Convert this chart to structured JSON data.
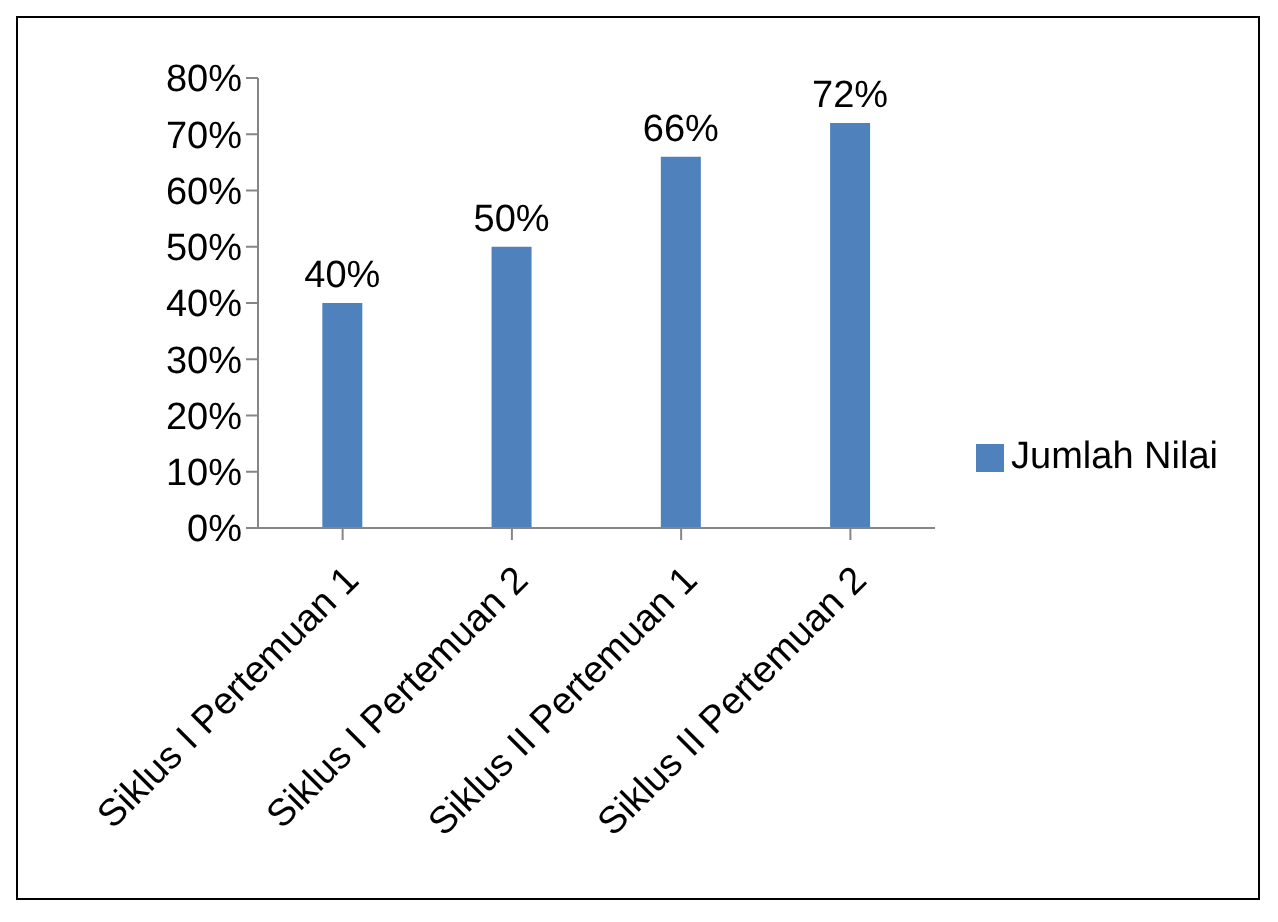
{
  "chart_data": {
    "type": "bar",
    "categories": [
      "Siklus I Pertemuan 1",
      "Siklus I Pertemuan 2",
      "Siklus II Pertemuan 1",
      "Siklus II Pertemuan 2"
    ],
    "series": [
      {
        "name": "Jumlah Nilai",
        "color": "#4f81bd",
        "values": [
          40,
          50,
          66,
          72
        ],
        "value_labels": [
          "40%",
          "50%",
          "66%",
          "72%"
        ]
      }
    ],
    "ylim": [
      0,
      80
    ],
    "yticks": [
      {
        "value": 0,
        "label": "0%"
      },
      {
        "value": 10,
        "label": "10%"
      },
      {
        "value": 20,
        "label": "20%"
      },
      {
        "value": 30,
        "label": "30%"
      },
      {
        "value": 40,
        "label": "40%"
      },
      {
        "value": 50,
        "label": "50%"
      },
      {
        "value": 60,
        "label": "60%"
      },
      {
        "value": 70,
        "label": "70%"
      },
      {
        "value": 80,
        "label": "80%"
      }
    ],
    "grid": false,
    "legend": "right"
  }
}
